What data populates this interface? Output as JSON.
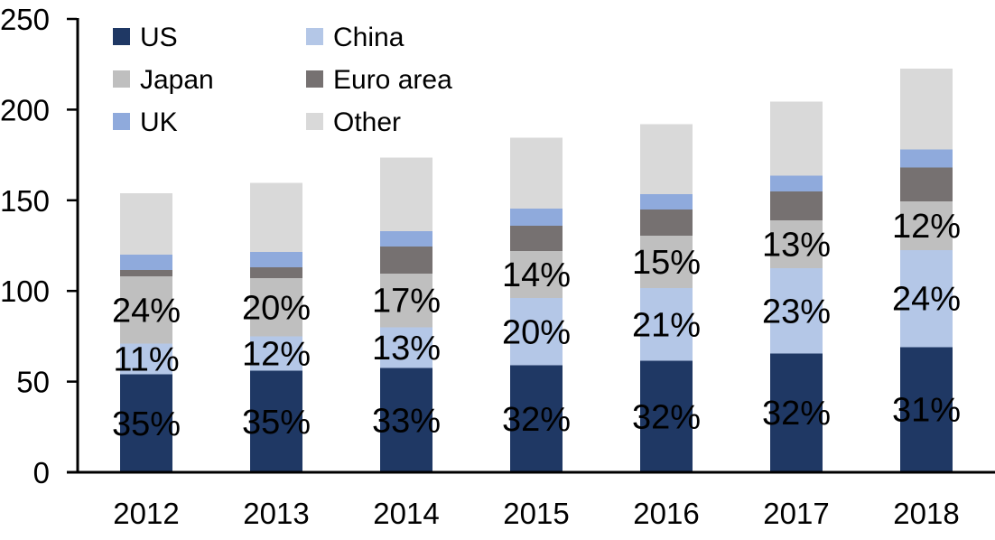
{
  "chart_data": {
    "type": "bar",
    "stacked": true,
    "title": "",
    "xlabel": "",
    "ylabel": "",
    "categories": [
      "2012",
      "2013",
      "2014",
      "2015",
      "2016",
      "2017",
      "2018"
    ],
    "series": [
      {
        "name": "US",
        "color": "#1F3864",
        "values": [
          54,
          56,
          57.5,
          59,
          61.5,
          65.5,
          69
        ],
        "labels": [
          "35%",
          "35%",
          "33%",
          "32%",
          "32%",
          "32%",
          "31%"
        ],
        "label_color": "#FFFFFF"
      },
      {
        "name": "China",
        "color": "#B4C7E7",
        "values": [
          17,
          19,
          22.5,
          37,
          40,
          47,
          53.5
        ],
        "labels": [
          "11%",
          "12%",
          "13%",
          "20%",
          "21%",
          "23%",
          "24%"
        ],
        "label_color": "#000000"
      },
      {
        "name": "Japan",
        "color": "#BFBFBF",
        "values": [
          37,
          32,
          29.5,
          26,
          29,
          26.5,
          27
        ],
        "labels": [
          "24%",
          "20%",
          "17%",
          "14%",
          "15%",
          "13%",
          "12%"
        ],
        "label_color": "#000000"
      },
      {
        "name": "Euro area",
        "color": "#767171",
        "values": [
          3.5,
          6,
          15,
          14,
          14.5,
          16,
          18.5
        ],
        "labels": null,
        "label_color": null
      },
      {
        "name": "UK",
        "color": "#8FAADC",
        "values": [
          8.5,
          8.5,
          8.5,
          9.5,
          8.5,
          8.5,
          10
        ],
        "labels": null,
        "label_color": null
      },
      {
        "name": "Other",
        "color": "#D9D9D9",
        "values": [
          34,
          38,
          40.5,
          39,
          38.5,
          41,
          44.5
        ],
        "labels": null,
        "label_color": null
      }
    ],
    "totals_approx": [
      154,
      159.5,
      173.5,
      184.5,
      192,
      204.5,
      222.5
    ],
    "ylim": [
      0,
      250
    ],
    "yticks": [
      0,
      50,
      100,
      150,
      200,
      250
    ],
    "ytick_labels": [
      "0",
      "50",
      "100",
      "150",
      "200",
      "250"
    ],
    "grid": false,
    "axis_color": "#000000",
    "legend": {
      "position": "top-left",
      "columns": 2,
      "order": [
        "US",
        "China",
        "Japan",
        "Euro area",
        "UK",
        "Other"
      ]
    }
  }
}
